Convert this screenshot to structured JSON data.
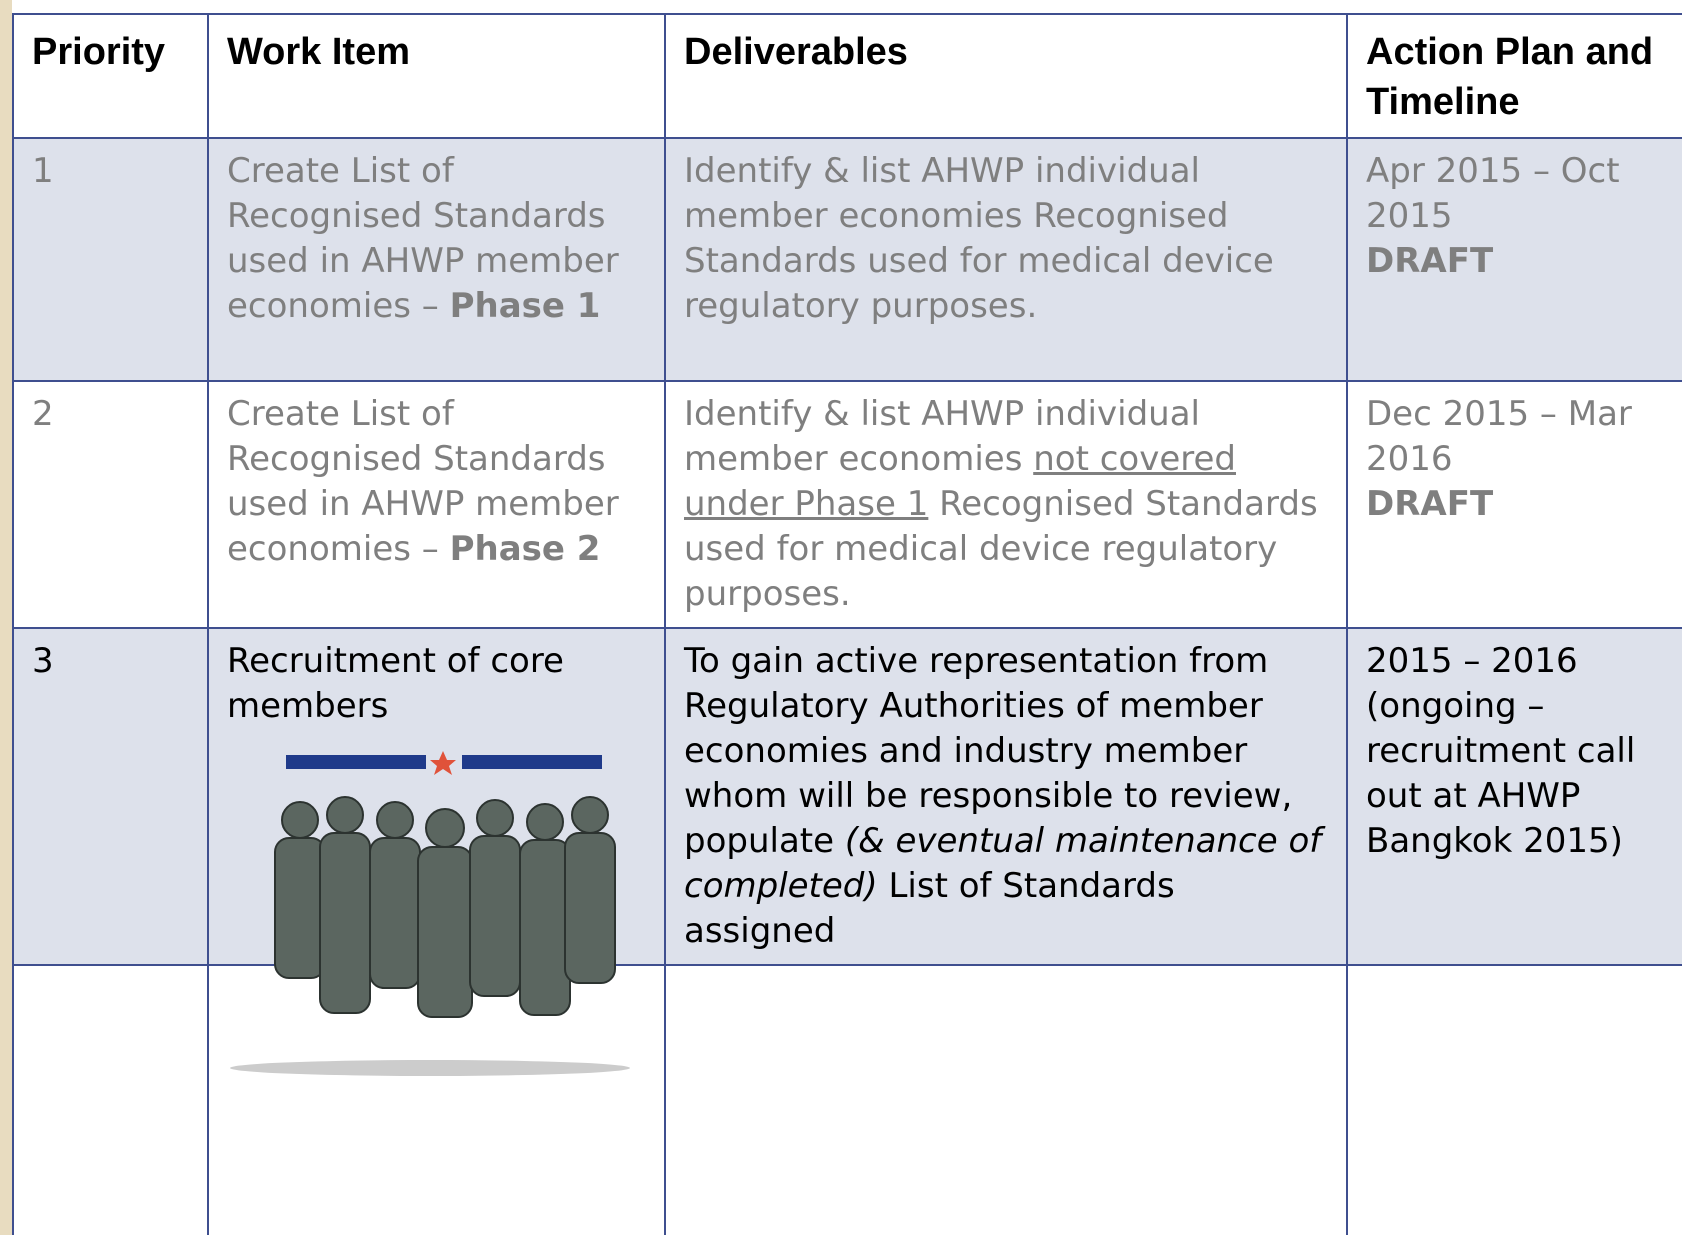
{
  "table": {
    "header": [
      "Priority",
      "Work Item",
      "Deliverables",
      "Action Plan and Timeline"
    ],
    "rows": [
      {
        "priority": "1",
        "work_item": {
          "text": "Create List of Recognised Standards used in AHWP member economies –",
          "phase": "Phase 1"
        },
        "deliverables": {
          "before": "Identify & list AHWP individual member economies Recognised Standards used for medical device regulatory purposes."
        },
        "timeline": {
          "dates": "Apr 2015 – Oct 2015",
          "status": "DRAFT"
        }
      },
      {
        "priority": "2",
        "work_item": {
          "text": "Create List of Recognised Standards used in AHWP member economies –",
          "phase": "Phase 2"
        },
        "deliverables": {
          "before": "Identify & list AHWP individual member economies",
          "underlined": "not covered under Phase 1",
          "after": "Recognised Standards used for medical device regulatory purposes."
        },
        "timeline": {
          "dates": "Dec 2015 – Mar 2016",
          "status": "DRAFT"
        }
      },
      {
        "priority": "3",
        "work_item": {
          "text": "Recruitment of core members"
        },
        "deliverables": {
          "before": "To gain active representation from Regulatory Authorities of member economies and industry member whom will be responsible to review, populate",
          "italic": "(& eventual maintenance of completed)",
          "after": "List of Standards assigned"
        },
        "timeline": {
          "dates": "2015 – 2016 (ongoing – recruitment call out at AHWP Bangkok 2015)"
        }
      }
    ]
  }
}
